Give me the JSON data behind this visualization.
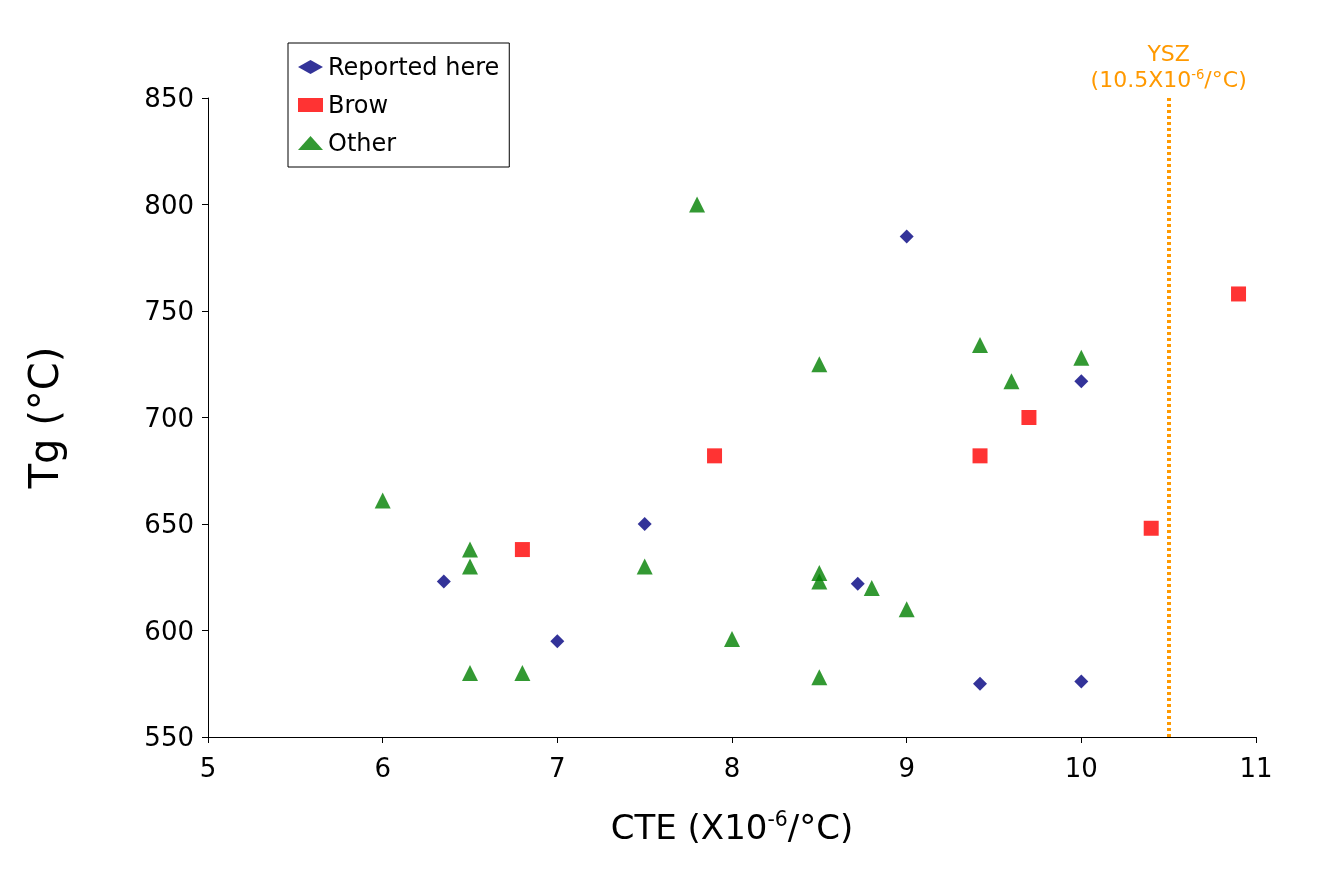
{
  "chart_data": {
    "type": "scatter",
    "xlabel": "CTE (X10$^{-6}$/°C)",
    "ylabel": "Tg (°C)",
    "xlim": [
      5,
      11
    ],
    "xticks": [
      5,
      6,
      7,
      8,
      9,
      10,
      11
    ],
    "ylim": [
      550,
      850
    ],
    "yticks": [
      550,
      600,
      650,
      700,
      750,
      800,
      850
    ],
    "grid": false,
    "legend": "top left",
    "series": [
      {
        "name": "Reported here",
        "color": "#000080",
        "marker": "diamond",
        "x": [
          6.35,
          7.0,
          7.5,
          8.72,
          9.0,
          9.42,
          10.0,
          10.0
        ],
        "values": [
          623,
          595,
          650,
          622,
          785,
          575,
          717,
          576
        ]
      },
      {
        "name": "Brow",
        "color": "#ff0000",
        "marker": "square",
        "x": [
          6.8,
          7.9,
          9.42,
          9.7,
          10.4,
          10.9
        ],
        "values": [
          638,
          682,
          682,
          700,
          648,
          758
        ]
      },
      {
        "name": "Other",
        "color": "#008000",
        "marker": "triangle",
        "x": [
          6.0,
          6.5,
          6.5,
          6.5,
          6.8,
          7.5,
          7.8,
          8.0,
          8.5,
          8.5,
          8.5,
          8.5,
          8.8,
          9.0,
          9.42,
          9.6,
          10.0
        ],
        "values": [
          661,
          638,
          630,
          580,
          580,
          630,
          800,
          596,
          725,
          627,
          623,
          578,
          620,
          610,
          734,
          717,
          728
        ]
      }
    ],
    "ref_lines": [
      {
        "axis": "x",
        "value": 10.5,
        "label": "YSZ\n(10.5X10$^{-6}$/°C)",
        "color": "#ff9900",
        "line_style": "dotted"
      }
    ]
  }
}
